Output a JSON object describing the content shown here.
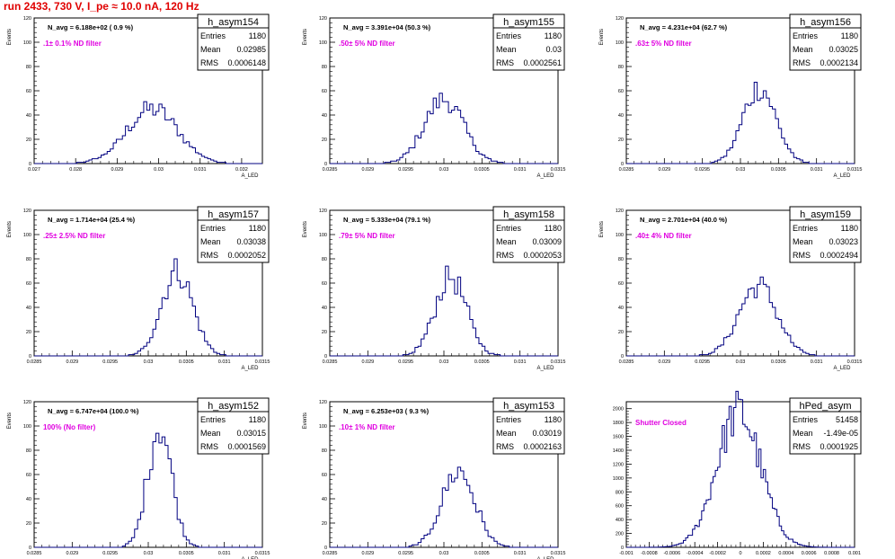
{
  "page": {
    "title": "run 2433,   730 V, I_pe ≈ 10.0 nA, 120 Hz"
  },
  "stats_labels": {
    "entries": "Entries",
    "mean": "Mean",
    "rms": "RMS"
  },
  "colors": {
    "title": "#e00000",
    "annotation": "#e000e0",
    "histogram": "#000080"
  },
  "chart_data": [
    {
      "type": "histogram",
      "name": "h_asym154",
      "nline": "N_avg = 6.188e+02 ( 0.9 %)",
      "annotation": ".1± 0.1% ND filter",
      "entries": "1180",
      "mean": "0.02985",
      "rms": "0.0006148",
      "xlabel": "A_LED",
      "ylabel": "Events",
      "xlim": [
        0.027,
        0.0325
      ],
      "ylim": [
        0,
        120
      ],
      "xticks": [
        "0.027",
        "0.028",
        "0.029",
        "0.03",
        "0.031",
        "0.032"
      ],
      "yticks": [
        "0",
        "20",
        "40",
        "60",
        "80",
        "100",
        "120"
      ],
      "center": 0.02985,
      "sigma": 0.0006148,
      "peak": 45,
      "bins": 75
    },
    {
      "type": "histogram",
      "name": "h_asym155",
      "nline": "N_avg = 3.391e+04 (50.3 %)",
      "annotation": ".50± 5% ND filter",
      "entries": "1180",
      "mean": "0.03",
      "rms": "0.0002561",
      "xlabel": "A_LED",
      "ylabel": "Events",
      "xlim": [
        0.0285,
        0.0315
      ],
      "ylim": [
        0,
        120
      ],
      "xticks": [
        "0.0285",
        "0.029",
        "0.0295",
        "0.03",
        "0.0305",
        "0.031",
        "0.0315"
      ],
      "yticks": [
        "0",
        "20",
        "40",
        "60",
        "80",
        "100",
        "120"
      ],
      "center": 0.03,
      "sigma": 0.0002561,
      "peak": 53,
      "bins": 75
    },
    {
      "type": "histogram",
      "name": "h_asym156",
      "nline": "N_avg = 4.231e+04 (62.7 %)",
      "annotation": ".63± 5% ND filter",
      "entries": "1180",
      "mean": "0.03025",
      "rms": "0.0002134",
      "xlabel": "A_LED",
      "ylabel": "Events",
      "xlim": [
        0.0285,
        0.0315
      ],
      "ylim": [
        0,
        120
      ],
      "xticks": [
        "0.0285",
        "0.029",
        "0.0295",
        "0.03",
        "0.0305",
        "0.031",
        "0.0315"
      ],
      "yticks": [
        "0",
        "20",
        "40",
        "60",
        "80",
        "100",
        "120"
      ],
      "center": 0.03025,
      "sigma": 0.0002134,
      "peak": 63,
      "bins": 75
    },
    {
      "type": "histogram",
      "name": "h_asym157",
      "nline": "N_avg = 1.714e+04 (25.4 %)",
      "annotation": ".25± 2.5% ND filter",
      "entries": "1180",
      "mean": "0.03038",
      "rms": "0.0002052",
      "xlabel": "A_LED",
      "ylabel": "Events",
      "xlim": [
        0.0285,
        0.0315
      ],
      "ylim": [
        0,
        120
      ],
      "xticks": [
        "0.0285",
        "0.029",
        "0.0295",
        "0.03",
        "0.0305",
        "0.031",
        "0.0315"
      ],
      "yticks": [
        "0",
        "20",
        "40",
        "60",
        "80",
        "100",
        "120"
      ],
      "center": 0.03038,
      "sigma": 0.0002052,
      "peak": 70,
      "bins": 75
    },
    {
      "type": "histogram",
      "name": "h_asym158",
      "nline": "N_avg = 5.333e+04 (79.1 %)",
      "annotation": ".79± 5% ND filter",
      "entries": "1180",
      "mean": "0.03009",
      "rms": "0.0002053",
      "xlabel": "A_LED",
      "ylabel": "Events",
      "xlim": [
        0.0285,
        0.0315
      ],
      "ylim": [
        0,
        120
      ],
      "xticks": [
        "0.0285",
        "0.029",
        "0.0295",
        "0.03",
        "0.0305",
        "0.031",
        "0.0315"
      ],
      "yticks": [
        "0",
        "20",
        "40",
        "60",
        "80",
        "100",
        "120"
      ],
      "center": 0.03009,
      "sigma": 0.0002053,
      "peak": 65,
      "bins": 75
    },
    {
      "type": "histogram",
      "name": "h_asym159",
      "nline": "N_avg = 2.701e+04 (40.0 %)",
      "annotation": ".40± 4% ND filter",
      "entries": "1180",
      "mean": "0.03023",
      "rms": "0.0002494",
      "xlabel": "A_LED",
      "ylabel": "Events",
      "xlim": [
        0.0285,
        0.0315
      ],
      "ylim": [
        0,
        120
      ],
      "xticks": [
        "0.0285",
        "0.029",
        "0.0295",
        "0.03",
        "0.0305",
        "0.031",
        "0.0315"
      ],
      "yticks": [
        "0",
        "20",
        "40",
        "60",
        "80",
        "100",
        "120"
      ],
      "center": 0.03023,
      "sigma": 0.0002494,
      "peak": 58,
      "bins": 75
    },
    {
      "type": "histogram",
      "name": "h_asym152",
      "nline": "N_avg = 6.747e+04 (100.0 %)",
      "annotation": "100% (No filter)",
      "entries": "1180",
      "mean": "0.03015",
      "rms": "0.0001569",
      "xlabel": "A_LED",
      "ylabel": "Events",
      "xlim": [
        0.0285,
        0.0315
      ],
      "ylim": [
        0,
        120
      ],
      "xticks": [
        "0.0285",
        "0.029",
        "0.0295",
        "0.03",
        "0.0305",
        "0.031",
        "0.0315"
      ],
      "yticks": [
        "0",
        "20",
        "40",
        "60",
        "80",
        "100",
        "120"
      ],
      "center": 0.03015,
      "sigma": 0.0001569,
      "peak": 100,
      "bins": 75
    },
    {
      "type": "histogram",
      "name": "h_asym153",
      "nline": "N_avg = 6.253e+03 ( 9.3 %)",
      "annotation": ".10± 1% ND filter",
      "entries": "1180",
      "mean": "0.03019",
      "rms": "0.0002163",
      "xlabel": "A_LED",
      "ylabel": "Events",
      "xlim": [
        0.0285,
        0.0315
      ],
      "ylim": [
        0,
        120
      ],
      "xticks": [
        "0.0285",
        "0.029",
        "0.0295",
        "0.03",
        "0.0305",
        "0.031",
        "0.0315"
      ],
      "yticks": [
        "0",
        "20",
        "40",
        "60",
        "80",
        "100",
        "120"
      ],
      "center": 0.03019,
      "sigma": 0.0002163,
      "peak": 63,
      "bins": 75
    },
    {
      "type": "histogram",
      "name": "hPed_asym",
      "nline": "",
      "annotation": "Shutter Closed",
      "entries": "51458",
      "mean": "-1.49e-05",
      "rms": "0.0001925",
      "xlabel": "",
      "ylabel": "",
      "xlim": [
        -0.001,
        0.001
      ],
      "ylim": [
        0,
        2100
      ],
      "xticks": [
        "-0.001",
        "-0.0008",
        "-0.0006",
        "-0.0004",
        "-0.0002",
        "0",
        "0.0002",
        "0.0004",
        "0.0006",
        "0.0008",
        "0.001"
      ],
      "yticks": [
        "0",
        "200",
        "400",
        "600",
        "800",
        "1000",
        "1200",
        "1400",
        "1600",
        "1800",
        "2000"
      ],
      "center": -1.49e-05,
      "sigma": 0.0001925,
      "peak": 1950,
      "bins": 100
    }
  ]
}
